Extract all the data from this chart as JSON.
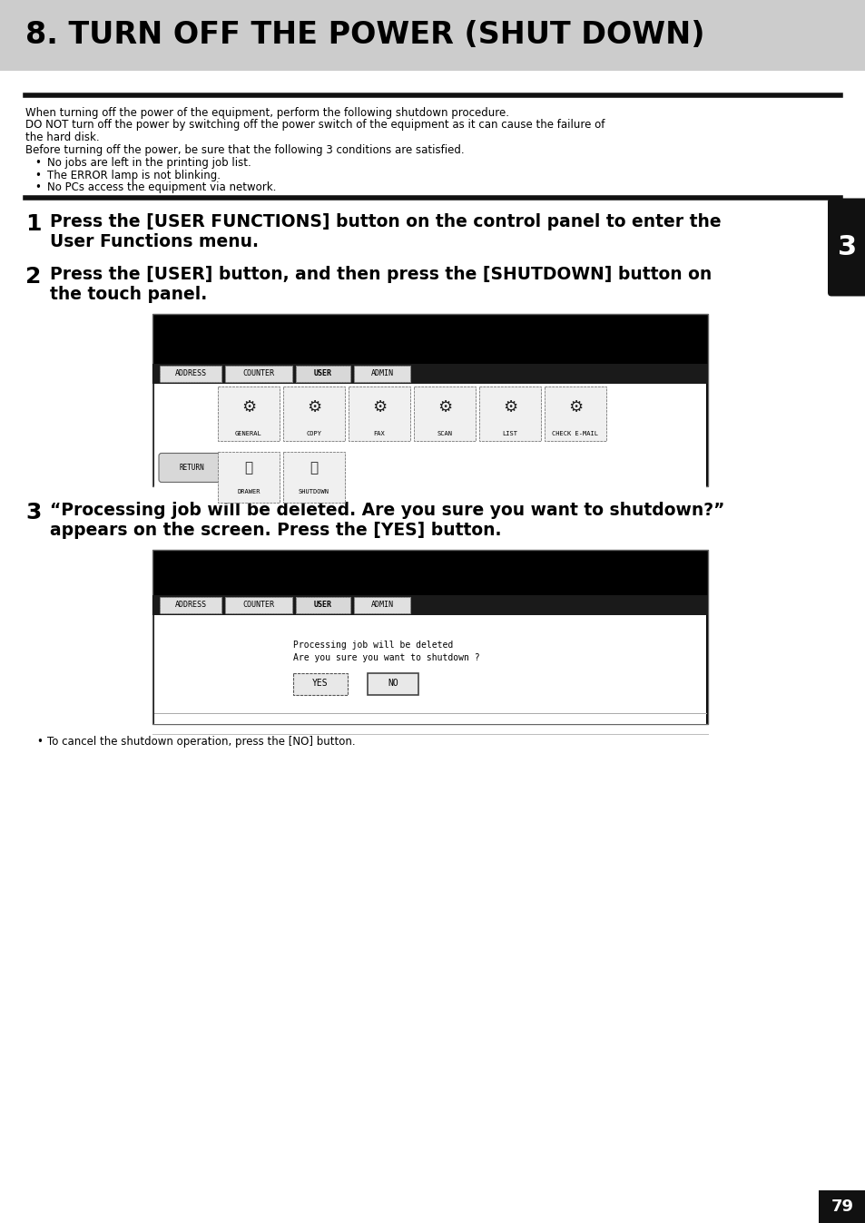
{
  "title": "8. TURN OFF THE POWER (SHUT DOWN)",
  "title_bg": "#cccccc",
  "page_bg": "#ffffff",
  "intro_text_lines": [
    "When turning off the power of the equipment, perform the following shutdown procedure.",
    "DO NOT turn off the power by switching off the power switch of the equipment as it can cause the failure of",
    "the hard disk.",
    "Before turning off the power, be sure that the following 3 conditions are satisfied."
  ],
  "bullets": [
    "No jobs are left in the printing job list.",
    "The ERROR lamp is not blinking.",
    "No PCs access the equipment via network."
  ],
  "step1_line1": "Press the [USER FUNCTIONS] button on the control panel to enter the",
  "step1_line2": "User Functions menu.",
  "step2_line1": "Press the [USER] button, and then press the [SHUTDOWN] button on",
  "step2_line2": "the touch panel.",
  "step3_line1": "“Processing job will be deleted. Are you sure you want to shutdown?”",
  "step3_line2": "appears on the screen. Press the [YES] button.",
  "step3_note": "To cancel the shutdown operation, press the [NO] button.",
  "sidebar_num": "3",
  "page_num": "79",
  "tabs": [
    {
      "label": "ADDRESS",
      "selected": false
    },
    {
      "label": "COUNTER",
      "selected": false
    },
    {
      "label": "USER",
      "selected": true
    },
    {
      "label": "ADMIN",
      "selected": false
    }
  ],
  "icons_row1": [
    "GENERAL",
    "COPY",
    "FAX",
    "SCAN",
    "LIST",
    "CHECK E-MAIL"
  ],
  "icons_row2_left": [
    "RETURN"
  ],
  "icons_row2_main": [
    "DRAWER",
    "SHUTDOWN"
  ]
}
